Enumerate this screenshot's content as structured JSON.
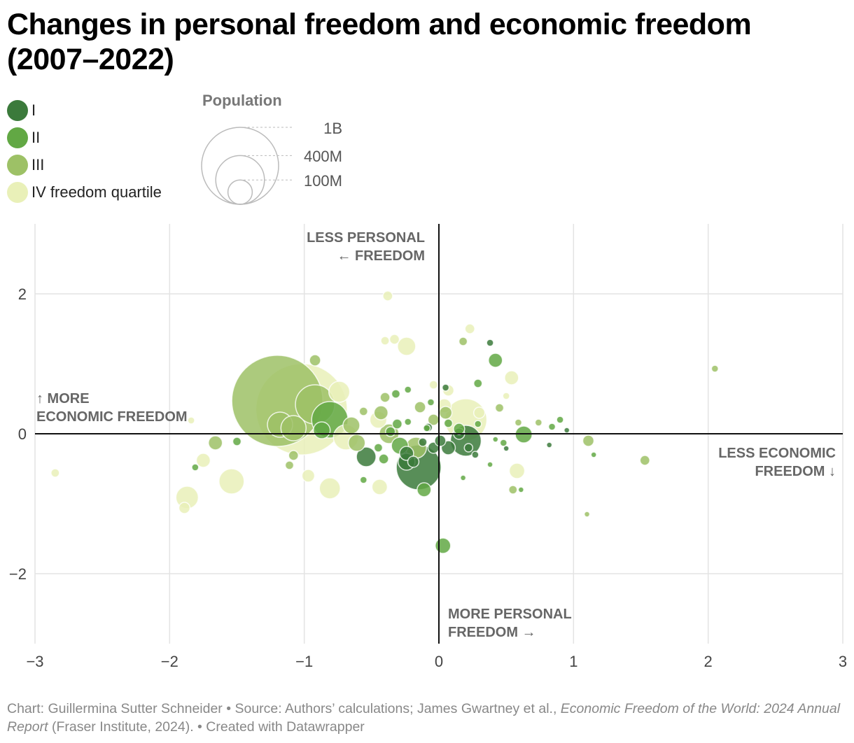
{
  "title": "Changes in personal freedom and economic freedom (2007–2022)",
  "legend": {
    "items": [
      {
        "label": "I",
        "color": "#3b7a3b"
      },
      {
        "label": "II",
        "color": "#62a844"
      },
      {
        "label": "III",
        "color": "#9dc166"
      },
      {
        "label": "IV freedom quartile",
        "color": "#e9f0b8"
      }
    ],
    "size_title": "Population",
    "sizes": [
      {
        "label": "1B",
        "value": 1000
      },
      {
        "label": "400M",
        "value": 400
      },
      {
        "label": "100M",
        "value": 100
      }
    ]
  },
  "chart_data": {
    "type": "scatter",
    "subtype": "bubble",
    "xlim": [
      -3,
      3
    ],
    "ylim": [
      -3,
      3
    ],
    "x_ticks": [
      "−3",
      "−2",
      "−1",
      "0",
      "1",
      "2",
      "3"
    ],
    "y_ticks": [
      "2",
      "0",
      "−2"
    ],
    "grid": true,
    "size_unit": "population (millions)",
    "annotations": {
      "top": [
        "LESS PERSONAL",
        "← FREEDOM"
      ],
      "bottom": [
        "MORE PERSONAL",
        "FREEDOM →"
      ],
      "left": [
        "↑ MORE",
        "ECONOMIC FREEDOM"
      ],
      "right": [
        "LESS ECONOMIC",
        "FREEDOM ↓"
      ]
    },
    "points": [
      [
        -1.02,
        0.35,
        1410,
        4
      ],
      [
        -1.2,
        0.47,
        1400,
        3
      ],
      [
        -1.18,
        0.13,
        107,
        3
      ],
      [
        -1.08,
        0.08,
        107,
        3
      ],
      [
        -0.92,
        0.42,
        259,
        3
      ],
      [
        -0.81,
        0.2,
        223,
        2
      ],
      [
        -0.87,
        0.05,
        48,
        2
      ],
      [
        -0.74,
        0.6,
        74,
        4
      ],
      [
        -0.65,
        0.12,
        48,
        3
      ],
      [
        -0.69,
        -0.05,
        107,
        4
      ],
      [
        -0.61,
        -0.13,
        48,
        3
      ],
      [
        -0.54,
        -0.33,
        65,
        1
      ],
      [
        -0.15,
        -0.48,
        339,
        1
      ],
      [
        -0.24,
        -0.4,
        48,
        1
      ],
      [
        -0.11,
        -0.8,
        33,
        2
      ],
      [
        0.03,
        -1.6,
        40,
        2
      ],
      [
        -0.92,
        1.05,
        21,
        3
      ],
      [
        -0.38,
        1.97,
        16,
        4
      ],
      [
        -0.4,
        1.33,
        12,
        4
      ],
      [
        -0.33,
        1.35,
        16,
        4
      ],
      [
        -0.24,
        1.25,
        56,
        4
      ],
      [
        0.23,
        1.5,
        16,
        4
      ],
      [
        0.18,
        1.32,
        12,
        3
      ],
      [
        0.38,
        1.3,
        8,
        1
      ],
      [
        0.42,
        1.05,
        33,
        2
      ],
      [
        0.54,
        0.8,
        33,
        4
      ],
      [
        0.29,
        0.72,
        12,
        2
      ],
      [
        0.5,
        0.54,
        8,
        4
      ],
      [
        0.45,
        0.37,
        12,
        3
      ],
      [
        0.3,
        0.3,
        21,
        4
      ],
      [
        0.29,
        0.14,
        8,
        2
      ],
      [
        0.59,
        0.16,
        8,
        3
      ],
      [
        0.05,
        0.66,
        8,
        1
      ],
      [
        -0.04,
        0.7,
        12,
        4
      ],
      [
        0.07,
        0.62,
        21,
        4
      ],
      [
        -0.32,
        0.57,
        12,
        2
      ],
      [
        -0.23,
        0.63,
        8,
        2
      ],
      [
        -0.4,
        0.52,
        16,
        3
      ],
      [
        -0.56,
        0.32,
        12,
        3
      ],
      [
        -0.31,
        0.14,
        16,
        2
      ],
      [
        -0.23,
        0.17,
        8,
        2
      ],
      [
        -0.09,
        0.08,
        8,
        2
      ],
      [
        -0.06,
        0.45,
        8,
        2
      ],
      [
        -0.14,
        0.38,
        21,
        3
      ],
      [
        0.04,
        0.4,
        33,
        4
      ],
      [
        0.05,
        0.3,
        27,
        3
      ],
      [
        -0.08,
        0.09,
        12,
        1
      ],
      [
        -0.43,
        0.3,
        33,
        3
      ],
      [
        -0.45,
        0.2,
        48,
        4
      ],
      [
        -0.37,
        0.0,
        65,
        3
      ],
      [
        -0.36,
        0.03,
        16,
        2
      ],
      [
        -0.45,
        -0.2,
        12,
        2
      ],
      [
        -0.41,
        -0.36,
        16,
        2
      ],
      [
        -0.29,
        -0.17,
        48,
        2
      ],
      [
        -0.24,
        -0.28,
        33,
        1
      ],
      [
        -0.19,
        -0.4,
        21,
        1
      ],
      [
        -0.12,
        -0.12,
        12,
        1
      ],
      [
        -0.04,
        -0.2,
        21,
        1
      ],
      [
        0.01,
        -0.1,
        21,
        1
      ],
      [
        0.07,
        -0.2,
        33,
        1
      ],
      [
        0.2,
        -0.1,
        160,
        1
      ],
      [
        0.15,
        0.0,
        21,
        1
      ],
      [
        0.22,
        -0.2,
        12,
        1
      ],
      [
        0.27,
        -0.3,
        8,
        1
      ],
      [
        0.15,
        0.07,
        21,
        2
      ],
      [
        0.07,
        0.15,
        12,
        2
      ],
      [
        0.2,
        0.2,
        298,
        4
      ],
      [
        0.63,
        -0.01,
        48,
        2
      ],
      [
        0.42,
        -0.08,
        5,
        2
      ],
      [
        0.48,
        -0.13,
        8,
        2
      ],
      [
        0.5,
        -0.21,
        5,
        1
      ],
      [
        0.82,
        -0.16,
        5,
        1
      ],
      [
        0.84,
        0.1,
        8,
        2
      ],
      [
        0.9,
        0.2,
        8,
        2
      ],
      [
        0.95,
        0.05,
        5,
        1
      ],
      [
        0.74,
        0.16,
        8,
        3
      ],
      [
        1.11,
        -0.1,
        21,
        3
      ],
      [
        1.15,
        -0.3,
        5,
        2
      ],
      [
        1.53,
        -0.38,
        16,
        3
      ],
      [
        2.05,
        0.93,
        8,
        3
      ],
      [
        1.1,
        -1.15,
        5,
        3
      ],
      [
        0.38,
        -0.44,
        5,
        2
      ],
      [
        0.58,
        -0.53,
        40,
        4
      ],
      [
        0.55,
        -0.8,
        12,
        3
      ],
      [
        0.61,
        -0.8,
        5,
        2
      ],
      [
        0.18,
        -0.63,
        5,
        2
      ],
      [
        -0.56,
        -0.66,
        8,
        2
      ],
      [
        -0.44,
        -0.76,
        40,
        4
      ],
      [
        -0.81,
        -0.78,
        74,
        4
      ],
      [
        -0.97,
        -0.6,
        27,
        4
      ],
      [
        -1.11,
        -0.45,
        12,
        3
      ],
      [
        -1.08,
        -0.31,
        16,
        3
      ],
      [
        -1.81,
        -0.48,
        8,
        2
      ],
      [
        -1.75,
        -0.38,
        33,
        4
      ],
      [
        -1.66,
        -0.13,
        33,
        3
      ],
      [
        -1.5,
        -0.11,
        12,
        2
      ],
      [
        -1.54,
        -0.68,
        107,
        4
      ],
      [
        -1.87,
        -0.91,
        85,
        4
      ],
      [
        -1.89,
        -1.06,
        21,
        4
      ],
      [
        -2.85,
        -0.56,
        12,
        4
      ],
      [
        -1.84,
        0.19,
        8,
        4
      ],
      [
        -0.17,
        -0.2,
        74,
        3
      ],
      [
        -0.04,
        0.2,
        21,
        3
      ]
    ]
  },
  "footer": {
    "part1": "Chart: Guillermina Sutter Schneider • Source: Authors’ calculations; James Gwartney et al., ",
    "italic1": "Economic Freedom of the World: 2024 Annual Report",
    "part2": " (Fraser Institute, 2024). • Created with Datawrapper"
  }
}
